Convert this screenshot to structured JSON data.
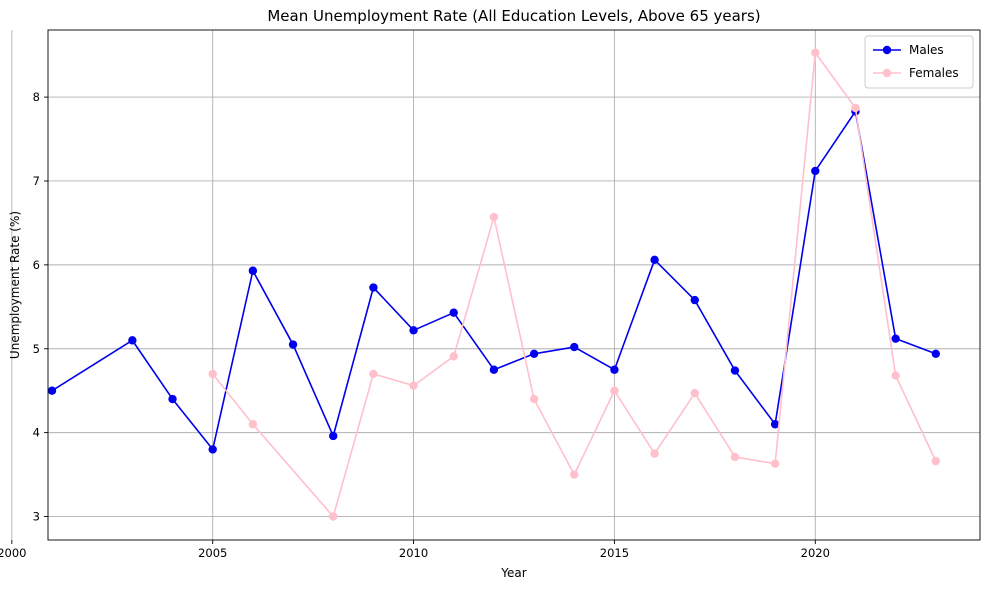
{
  "chart_data": {
    "type": "line",
    "title": "Mean Unemployment Rate (All Education Levels, Above 65 years)",
    "xlabel": "Year",
    "ylabel": "Unemployment Rate (%)",
    "xlim": [
      2000.9,
      2024.1
    ],
    "ylim": [
      2.72,
      8.8
    ],
    "xticks": [
      2000,
      2005,
      2010,
      2015,
      2020
    ],
    "yticks": [
      3,
      4,
      5,
      6,
      7,
      8
    ],
    "grid": true,
    "legend_position": "top-right",
    "series": [
      {
        "name": "Males",
        "color": "#0000ee",
        "x": [
          2001,
          2003,
          2004,
          2005,
          2006,
          2007,
          2008,
          2009,
          2010,
          2011,
          2012,
          2013,
          2014,
          2015,
          2016,
          2017,
          2018,
          2019,
          2020,
          2021,
          2022,
          2023
        ],
        "values": [
          4.5,
          5.1,
          4.4,
          3.8,
          5.93,
          5.05,
          3.96,
          5.73,
          5.22,
          5.43,
          4.75,
          4.94,
          5.02,
          4.75,
          6.06,
          5.58,
          4.74,
          4.1,
          7.12,
          7.83,
          5.12,
          4.94
        ]
      },
      {
        "name": "Females",
        "color": "#ffc0cb",
        "x": [
          2005,
          2006,
          2008,
          2009,
          2010,
          2011,
          2012,
          2013,
          2014,
          2015,
          2016,
          2017,
          2018,
          2019,
          2020,
          2021,
          2022,
          2023
        ],
        "values": [
          4.7,
          4.1,
          3.0,
          4.7,
          4.56,
          4.91,
          6.57,
          4.4,
          3.5,
          4.5,
          3.75,
          4.47,
          3.71,
          3.63,
          8.53,
          7.87,
          4.68,
          3.66
        ]
      }
    ]
  }
}
